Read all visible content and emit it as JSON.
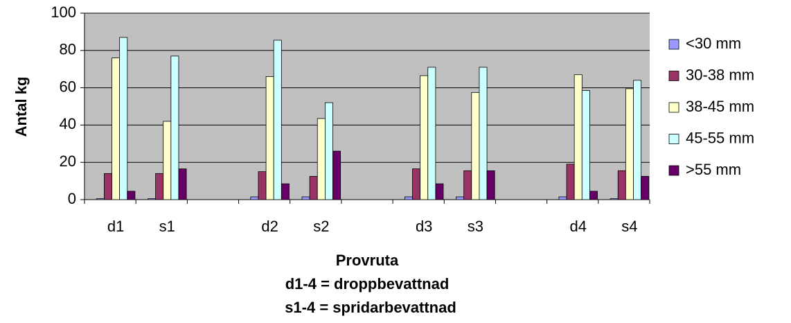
{
  "chart_data": {
    "type": "bar",
    "x_label": "Provruta",
    "y_label": "Antal kg",
    "annotations": [
      "d1-4 = droppbevattnad",
      "s1-4 = spridarbevattnad"
    ],
    "categories": [
      "d1",
      "s1",
      null,
      "d2",
      "s2",
      null,
      "d3",
      "s3",
      null,
      "d4",
      "s4"
    ],
    "series": [
      {
        "name": "<30 mm",
        "color": "#9999ff",
        "values": [
          0.5,
          0.5,
          null,
          1.5,
          1.5,
          null,
          1.5,
          1.5,
          null,
          1.5,
          0.5
        ]
      },
      {
        "name": "30-38 mm",
        "color": "#993366",
        "values": [
          14,
          14,
          null,
          15,
          12.5,
          null,
          16.5,
          15.5,
          null,
          19,
          15.5
        ]
      },
      {
        "name": "38-45 mm",
        "color": "#ffffcc",
        "values": [
          76,
          42,
          null,
          66,
          43.5,
          null,
          66.5,
          57.5,
          null,
          67,
          59.5
        ]
      },
      {
        "name": "45-55 mm",
        "color": "#ccffff",
        "values": [
          87,
          77,
          null,
          85.5,
          52,
          null,
          71,
          71,
          null,
          58.5,
          64
        ]
      },
      {
        "name": ">55 mm",
        "color": "#660066",
        "values": [
          4.5,
          16.5,
          null,
          8.5,
          26,
          null,
          8.5,
          15.5,
          null,
          4.5,
          12.5
        ]
      }
    ],
    "ylim": [
      0,
      100
    ],
    "yticks": [
      0,
      20,
      40,
      60,
      80,
      100
    ],
    "grid": true,
    "plot_background": "#c0c0c0",
    "legend": "right"
  }
}
